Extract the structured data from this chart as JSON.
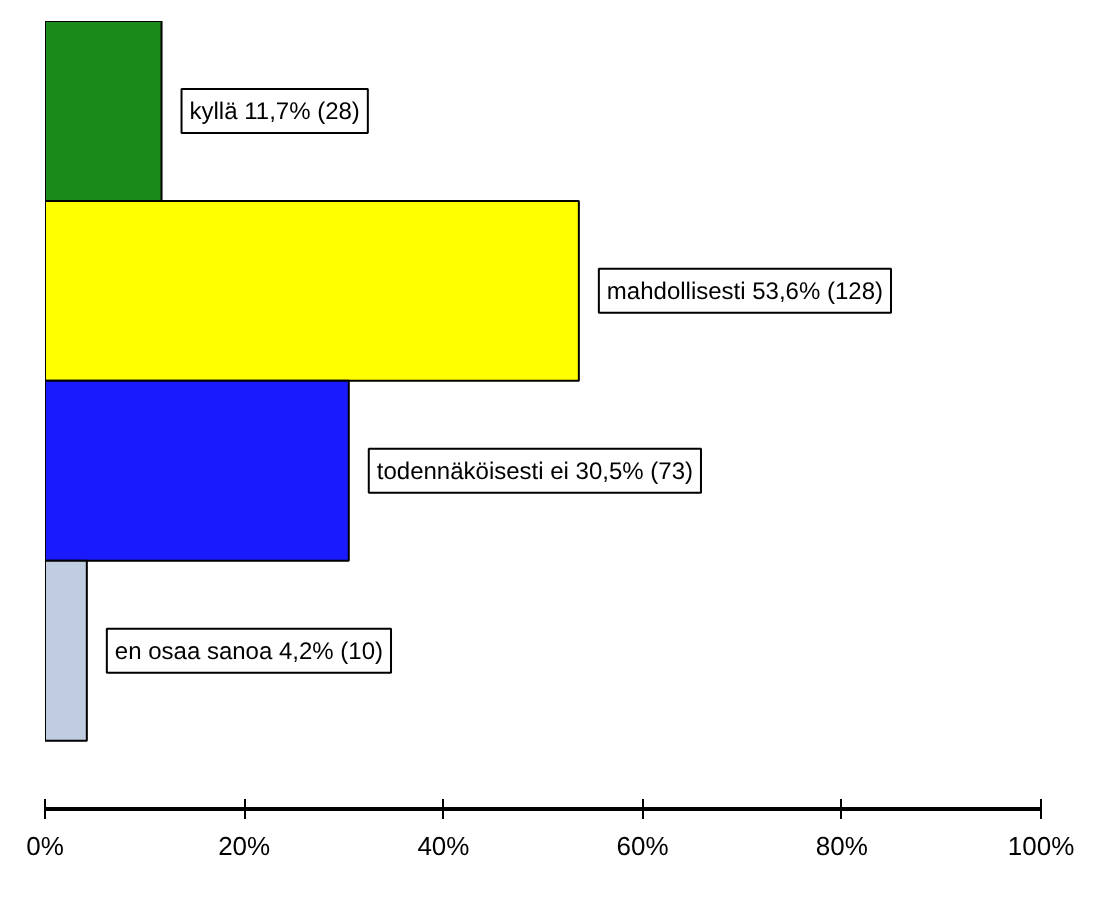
{
  "chart_data": {
    "type": "bar",
    "orientation": "horizontal",
    "categories": [
      null,
      null,
      null,
      null
    ],
    "values": [
      11.7,
      53.6,
      30.5,
      4.2
    ],
    "colors": [
      "#1a8a1a",
      "#ffff00",
      "#1a1aff",
      "#c0cce0"
    ],
    "value_labels": [
      "kyllä 11,7% (28)",
      "mahdollisesti 53,6% (128)",
      "todennäköisesti ei 30,5% (73)",
      "en osaa sanoa 4,2% (10)"
    ],
    "xlim": [
      0,
      100
    ],
    "xticks": [
      {
        "value": 0,
        "label": "0%"
      },
      {
        "value": 20,
        "label": "20%"
      },
      {
        "value": 40,
        "label": "40%"
      },
      {
        "value": 60,
        "label": "60%"
      },
      {
        "value": 80,
        "label": "80%"
      },
      {
        "value": 100,
        "label": "100%"
      }
    ],
    "grid": false
  }
}
